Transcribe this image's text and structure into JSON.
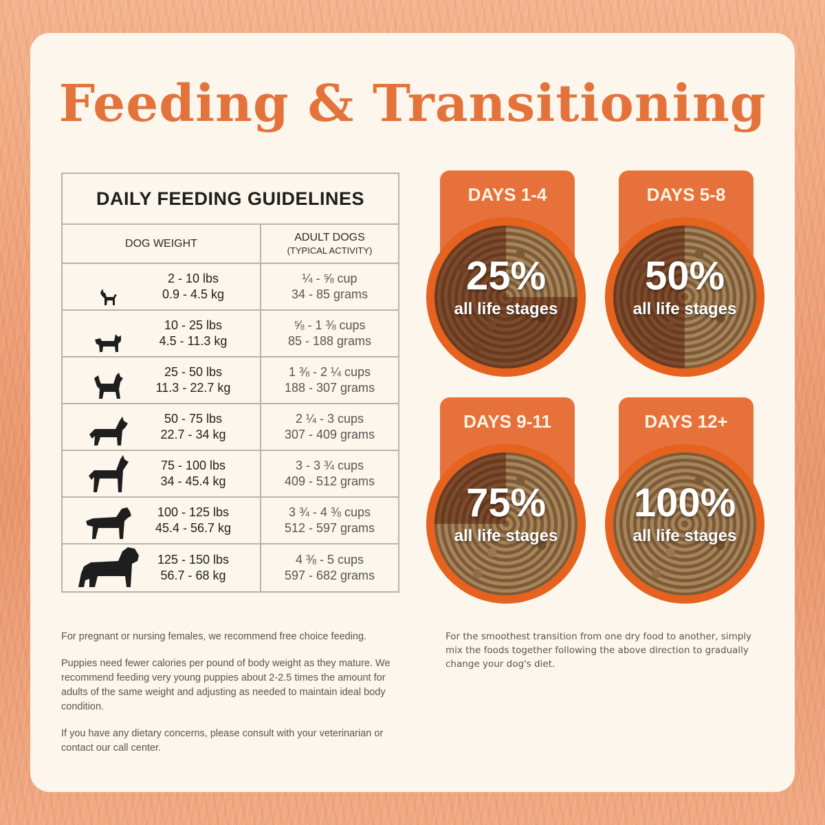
{
  "title": "Feeding & Transitioning",
  "table": {
    "heading": "DAILY FEEDING GUIDELINES",
    "col_weight": "DOG WEIGHT",
    "col_adult_1": "ADULT DOGS",
    "col_adult_2": "(TYPICAL ACTIVITY)",
    "rows": [
      {
        "icon": "tiny-dog-icon",
        "lbs": "2 - 10 lbs",
        "kg": "0.9 - 4.5 kg",
        "cups": "¼ - ⅝ cup",
        "grams": "34 - 85 grams"
      },
      {
        "icon": "small-dog-icon",
        "lbs": "10 - 25 lbs",
        "kg": "4.5 - 11.3 kg",
        "cups": "⅝ - 1 ⅜ cups",
        "grams": "85 - 188 grams"
      },
      {
        "icon": "medium-dog-icon",
        "lbs": "25 - 50 lbs",
        "kg": "11.3 - 22.7 kg",
        "cups": "1 ⅜ - 2 ¼ cups",
        "grams": "188 - 307 grams"
      },
      {
        "icon": "large-dog-icon",
        "lbs": "50 - 75 lbs",
        "kg": "22.7 - 34 kg",
        "cups": "2 ¼ - 3 cups",
        "grams": "307 - 409 grams"
      },
      {
        "icon": "great-dane-icon",
        "lbs": "75 - 100 lbs",
        "kg": "34 - 45.4 kg",
        "cups": "3 - 3 ¾ cups",
        "grams": "409 - 512 grams"
      },
      {
        "icon": "retriever-icon",
        "lbs": "100 - 125 lbs",
        "kg": "45.4 - 56.7 kg",
        "cups": "3 ¾ - 4 ⅜ cups",
        "grams": "512 - 597 grams"
      },
      {
        "icon": "giant-dog-icon",
        "lbs": "125 - 150 lbs",
        "kg": "56.7 - 68 kg",
        "cups": "4 ⅜ - 5 cups",
        "grams": "597 - 682 grams"
      }
    ]
  },
  "transition": [
    {
      "label": "DAYS 1-4",
      "percent": "25%",
      "fraction": 0.25,
      "stage": "all life stages"
    },
    {
      "label": "DAYS 5-8",
      "percent": "50%",
      "fraction": 0.5,
      "stage": "all life stages"
    },
    {
      "label": "DAYS 9-11",
      "percent": "75%",
      "fraction": 0.75,
      "stage": "all life stages"
    },
    {
      "label": "DAYS 12+",
      "percent": "100%",
      "fraction": 1.0,
      "stage": "all life stages"
    }
  ],
  "notes_left": [
    "For pregnant or nursing females, we recommend free choice feeding.",
    "Puppies need fewer calories per pound of body weight as they mature. We recommend feeding very young puppies about 2-2.5 times the amount for adults of the same weight and adjusting as needed to maintain ideal body condition.",
    "If you have any dietary concerns, please consult with your veterinarian or contact our call center."
  ],
  "notes_right": "For the smoothest transition from one dry food to another, simply mix the foods together following the above direction to gradually change your dog's diet.",
  "colors": {
    "accent": "#e4733b",
    "tab": "#e7713a",
    "bowl": "#e5621f",
    "card": "#fcf6ec"
  }
}
